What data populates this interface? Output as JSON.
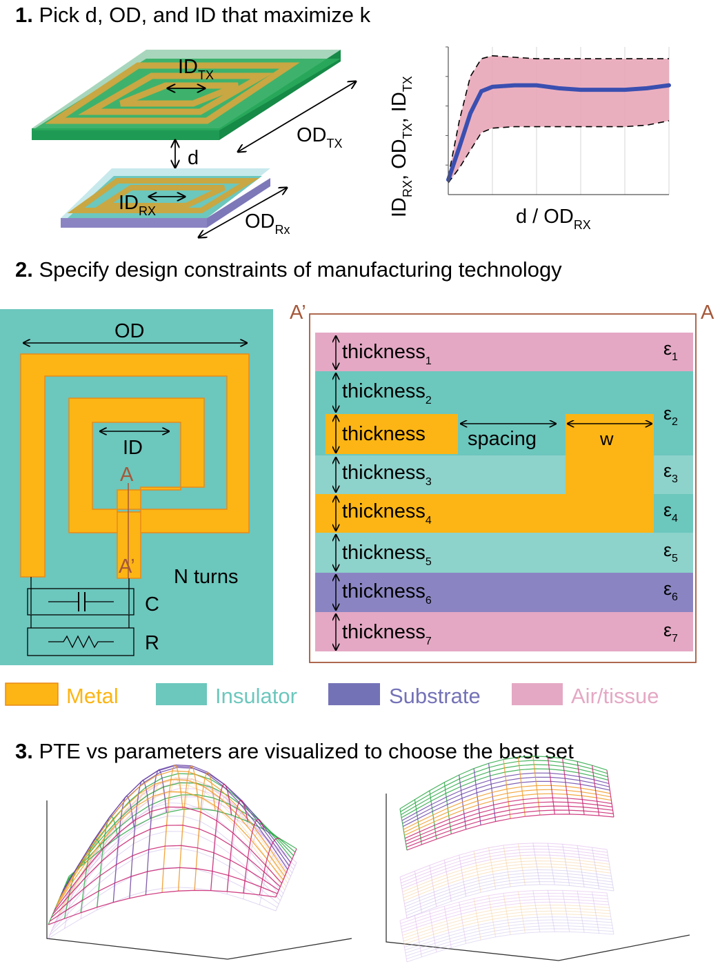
{
  "step1": {
    "num": "1.",
    "title": " Pick d, OD, and ID that maximize k"
  },
  "step2": {
    "num": "2.",
    "title": " Specify design constraints of manufacturing technology"
  },
  "step3": {
    "num": "3.",
    "title": " PTE vs parameters are visualized to choose the best set"
  },
  "coils": {
    "id_tx": "ID",
    "id_tx_sub": "TX",
    "od_tx": "OD",
    "od_tx_sub": "TX",
    "d": "d",
    "id_rx": "ID",
    "id_rx_sub": "RX",
    "od_rx": "OD",
    "od_rx_sub": "Rx"
  },
  "chart_data": {
    "type": "line",
    "title": "",
    "xlabel": "d / OD",
    "xlabel_sub": "RX",
    "ylabel_parts": [
      {
        "t": "ID",
        "s": "RX"
      },
      {
        "t": ", OD",
        "s": "TX"
      },
      {
        "t": ", ID",
        "s": "TX"
      }
    ],
    "x": [
      0,
      0.05,
      0.1,
      0.15,
      0.2,
      0.3,
      0.4,
      0.5,
      0.6,
      0.7,
      0.8,
      0.9,
      1.0
    ],
    "series": [
      {
        "role": "center",
        "values": [
          0.1,
          0.32,
          0.55,
          0.7,
          0.73,
          0.74,
          0.74,
          0.72,
          0.71,
          0.71,
          0.71,
          0.72,
          0.74
        ]
      },
      {
        "role": "upper",
        "values": [
          0.12,
          0.5,
          0.8,
          0.92,
          0.94,
          0.93,
          0.92,
          0.92,
          0.92,
          0.92,
          0.92,
          0.92,
          0.92
        ]
      },
      {
        "role": "lower",
        "values": [
          0.08,
          0.18,
          0.3,
          0.42,
          0.45,
          0.46,
          0.46,
          0.46,
          0.46,
          0.46,
          0.46,
          0.47,
          0.5
        ]
      }
    ],
    "ylim": [
      0,
      1
    ],
    "xlim": [
      0,
      1
    ],
    "grid": true,
    "colors": {
      "center": "#3a4fb0",
      "band": "#e8a6b8"
    }
  },
  "coil2d": {
    "od": "OD",
    "id": "ID",
    "a": "A",
    "a_prime": "A’",
    "n_turns": "N turns",
    "c": "C",
    "r": "R"
  },
  "section": {
    "a_prime": "A’",
    "a": "A",
    "layers": [
      {
        "label": "thickness",
        "sub": "1",
        "eps": "ε",
        "eps_sub": "1"
      },
      {
        "label": "thickness",
        "sub": "2",
        "eps": "ε",
        "eps_sub": "2"
      },
      {
        "label": "thickness",
        "sub": "",
        "eps": "",
        "eps_sub": ""
      },
      {
        "label": "thickness",
        "sub": "3",
        "eps": "ε",
        "eps_sub": "3"
      },
      {
        "label": "thickness",
        "sub": "4",
        "eps": "ε",
        "eps_sub": "4"
      },
      {
        "label": "thickness",
        "sub": "5",
        "eps": "ε",
        "eps_sub": "5"
      },
      {
        "label": "thickness",
        "sub": "6",
        "eps": "ε",
        "eps_sub": "6"
      },
      {
        "label": "thickness",
        "sub": "7",
        "eps": "ε",
        "eps_sub": "7"
      }
    ],
    "spacing": "spacing",
    "w": "w"
  },
  "legend": [
    {
      "label": "Metal",
      "color": "#fcb514"
    },
    {
      "label": "Insulator",
      "color": "#6cc7bd"
    },
    {
      "label": "Substrate",
      "color": "#7472b7"
    },
    {
      "label": "Air/tissue",
      "color": "#e4a8c4"
    }
  ],
  "colors": {
    "metal": "#fcb514",
    "metal_edge": "#e88a1a",
    "insulator": "#6cc7bd",
    "insulator_light": "#8dd2cb",
    "substrate": "#8a85c2",
    "air": "#e4a8c4",
    "brown": "#a5583a",
    "pcb": "#1f9a54",
    "pcb_light": "#9fd1b5"
  }
}
